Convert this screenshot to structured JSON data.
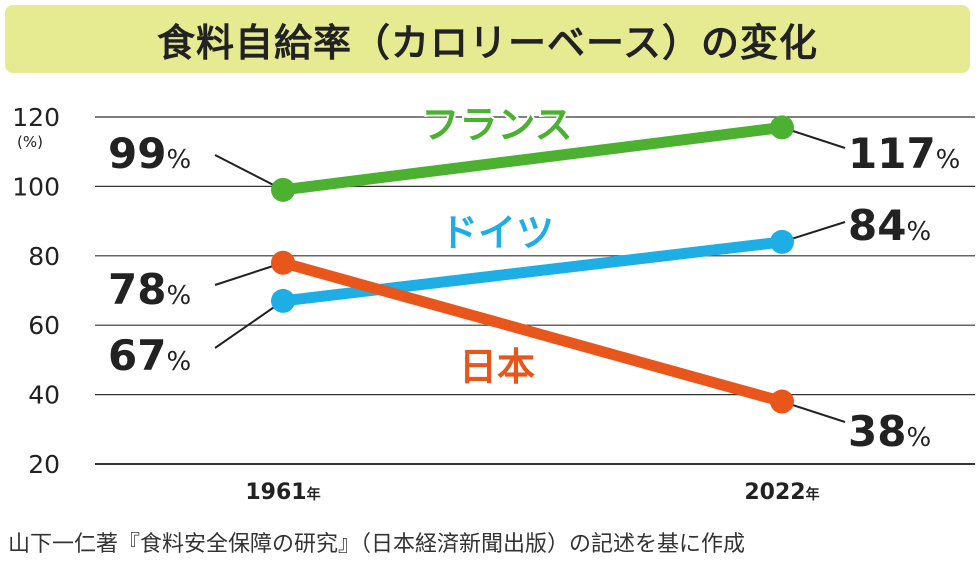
{
  "chart_data": {
    "type": "line",
    "title": "食料自給率（カロリーベース）の変化",
    "ylabel": "(%)",
    "ylim": [
      20,
      120
    ],
    "yticks": [
      "20",
      "40",
      "60",
      "80",
      "100",
      "120"
    ],
    "x": [
      1961,
      2022
    ],
    "x_labels": [
      {
        "number": "1961",
        "unit": "年"
      },
      {
        "number": "2022",
        "unit": "年"
      }
    ],
    "grid": true,
    "series": [
      {
        "name": "フランス",
        "values": [
          99,
          117
        ],
        "labels": [
          "99",
          "117"
        ],
        "color": "#4cb030"
      },
      {
        "name": "ドイツ",
        "values": [
          67,
          84
        ],
        "labels": [
          "67",
          "84"
        ],
        "color": "#1eaee6"
      },
      {
        "name": "日本",
        "values": [
          78,
          38
        ],
        "labels": [
          "78",
          "38"
        ],
        "color": "#e8561b"
      }
    ],
    "percent_sign": "%",
    "source": "山下一仁著『食料安全保障の研究』（日本経済新聞出版）の記述を基に作成"
  }
}
